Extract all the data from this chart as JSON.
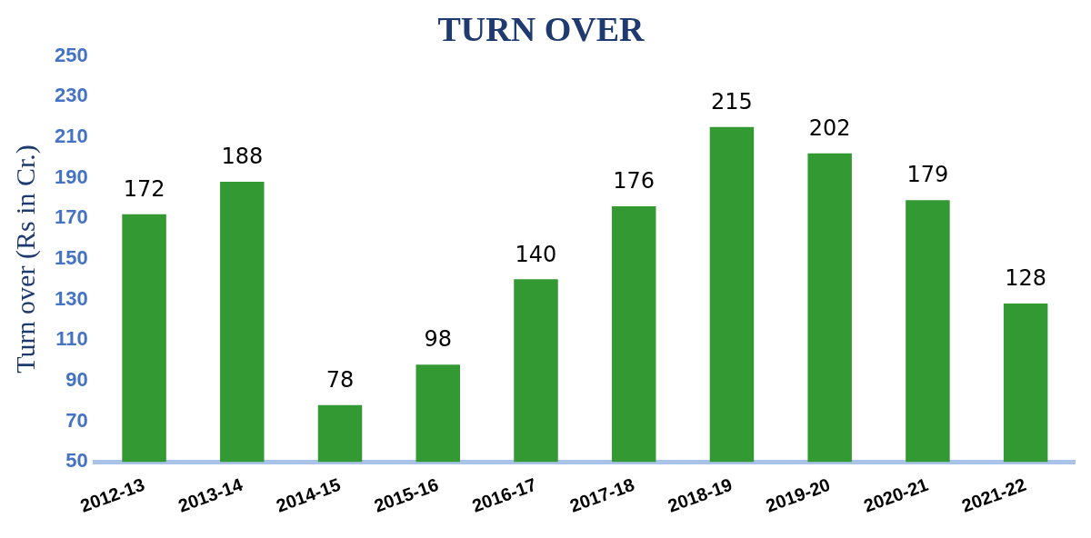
{
  "chart_data": {
    "type": "bar",
    "title": "TURN OVER",
    "ylabel": "Turn over (Rs in Cr.)",
    "categories": [
      "2012-13",
      "2013-14",
      "2014-15",
      "2015-16",
      "2016-17",
      "2017-18",
      "2018-19",
      "2019-20",
      "2020-21",
      "2021-22"
    ],
    "values": [
      172,
      188,
      78,
      98,
      140,
      176,
      215,
      202,
      179,
      128
    ],
    "color": "#339933",
    "ylim": [
      50,
      250
    ],
    "yticks": [
      50,
      70,
      90,
      110,
      130,
      150,
      170,
      190,
      210,
      230,
      250
    ],
    "grid": false,
    "data_labels": true,
    "legend": false
  }
}
